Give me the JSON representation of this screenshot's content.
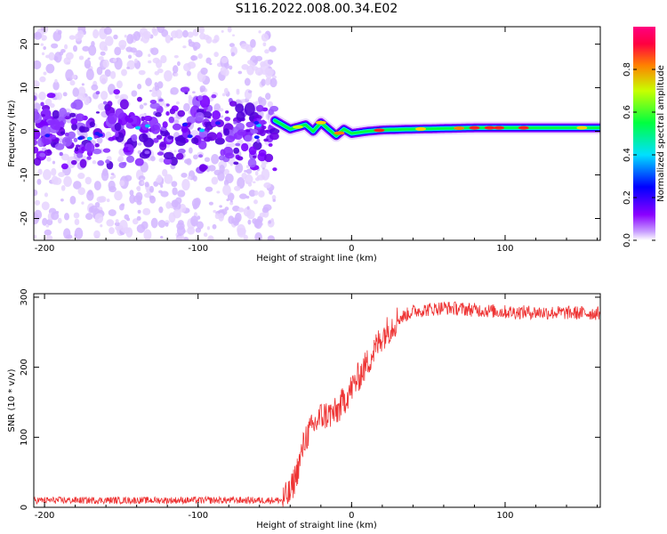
{
  "title": "S116.2022.008.00.34.E02",
  "chart_data": [
    {
      "type": "heatmap",
      "xlabel": "Height of straight line (km)",
      "ylabel": "Frequency (Hz)",
      "xlim": [
        -207,
        162
      ],
      "ylim": [
        -25,
        24
      ],
      "xticks": [
        -200,
        -100,
        0,
        100
      ],
      "yticks": [
        -20,
        -10,
        0,
        10,
        20
      ],
      "colorbar": {
        "label": "Normalized spectral amplitude",
        "range": [
          0,
          1
        ],
        "ticks": [
          "0.0",
          "0.2",
          "0.4",
          "0.6",
          "0.8"
        ],
        "colormap": [
          "#ffffff",
          "#8a00ff",
          "#0000ff",
          "#00e0ff",
          "#00ff40",
          "#c8ff00",
          "#ff8000",
          "#ff0040",
          "#ff0080"
        ]
      },
      "signal_track": [
        {
          "x": -50,
          "f": 2.5
        },
        {
          "x": -40,
          "f": 0.5
        },
        {
          "x": -30,
          "f": 1.5
        },
        {
          "x": -25,
          "f": 0
        },
        {
          "x": -20,
          "f": 2
        },
        {
          "x": -15,
          "f": 0.5
        },
        {
          "x": -10,
          "f": -1
        },
        {
          "x": -5,
          "f": 0.5
        },
        {
          "x": 0,
          "f": -0.5
        },
        {
          "x": 10,
          "f": 0
        },
        {
          "x": 20,
          "f": 0.3
        },
        {
          "x": 40,
          "f": 0.5
        },
        {
          "x": 80,
          "f": 0.8
        },
        {
          "x": 120,
          "f": 0.8
        },
        {
          "x": 162,
          "f": 0.8
        }
      ],
      "noise_region": {
        "x_from": -207,
        "x_to": -50
      }
    },
    {
      "type": "line",
      "xlabel": "Height of straight line (km)",
      "ylabel": "SNR (10 * v/v)",
      "xlim": [
        -207,
        162
      ],
      "ylim": [
        0,
        305
      ],
      "xticks": [
        -200,
        -100,
        0,
        100
      ],
      "yticks": [
        0,
        100,
        200,
        300
      ],
      "color": "#ee3333",
      "trend": [
        {
          "x": -207,
          "y": 10
        },
        {
          "x": -45,
          "y": 10
        },
        {
          "x": -40,
          "y": 20
        },
        {
          "x": -35,
          "y": 55
        },
        {
          "x": -30,
          "y": 100
        },
        {
          "x": -20,
          "y": 130
        },
        {
          "x": -10,
          "y": 135
        },
        {
          "x": 0,
          "y": 170
        },
        {
          "x": 10,
          "y": 205
        },
        {
          "x": 20,
          "y": 245
        },
        {
          "x": 30,
          "y": 268
        },
        {
          "x": 40,
          "y": 280
        },
        {
          "x": 60,
          "y": 285
        },
        {
          "x": 100,
          "y": 279
        },
        {
          "x": 162,
          "y": 277
        }
      ]
    }
  ]
}
